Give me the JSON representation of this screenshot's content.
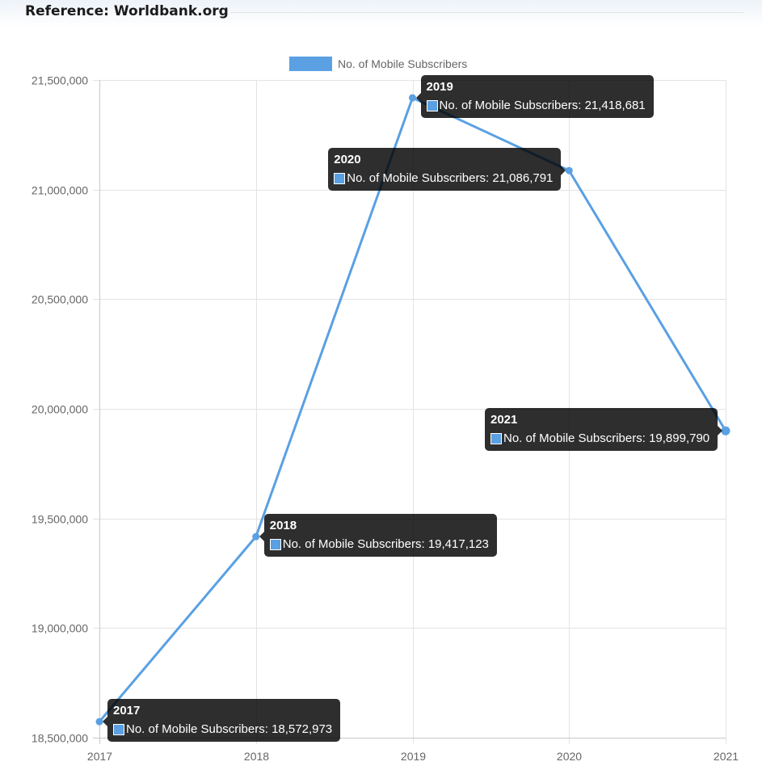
{
  "header": {
    "reference_text": "Reference: Worldbank.org"
  },
  "chart_data": {
    "type": "line",
    "title": "",
    "xlabel": "",
    "ylabel": "",
    "x": [
      "2017",
      "2018",
      "2019",
      "2020",
      "2021"
    ],
    "series": [
      {
        "name": "No. of Mobile Subscribers",
        "values": [
          18572973,
          19417123,
          21418681,
          21086791,
          19899790
        ],
        "color": "#5aa0e3"
      }
    ],
    "ylim": [
      18500000,
      21500000
    ],
    "yticks": [
      18500000,
      19000000,
      19500000,
      20000000,
      20500000,
      21000000,
      21500000
    ],
    "ytick_labels": [
      "18,500,000",
      "19,000,000",
      "19,500,000",
      "20,000,000",
      "20,500,000",
      "21,000,000",
      "21,500,000"
    ],
    "grid": true,
    "legend_position": "top-center",
    "tooltips": [
      {
        "title": "2017",
        "label": "No. of Mobile Subscribers: 18,572,973"
      },
      {
        "title": "2018",
        "label": "No. of Mobile Subscribers: 19,417,123"
      },
      {
        "title": "2019",
        "label": "No. of Mobile Subscribers: 21,418,681"
      },
      {
        "title": "2020",
        "label": "No. of Mobile Subscribers: 21,086,791"
      },
      {
        "title": "2021",
        "label": "No. of Mobile Subscribers: 19,899,790"
      }
    ]
  }
}
